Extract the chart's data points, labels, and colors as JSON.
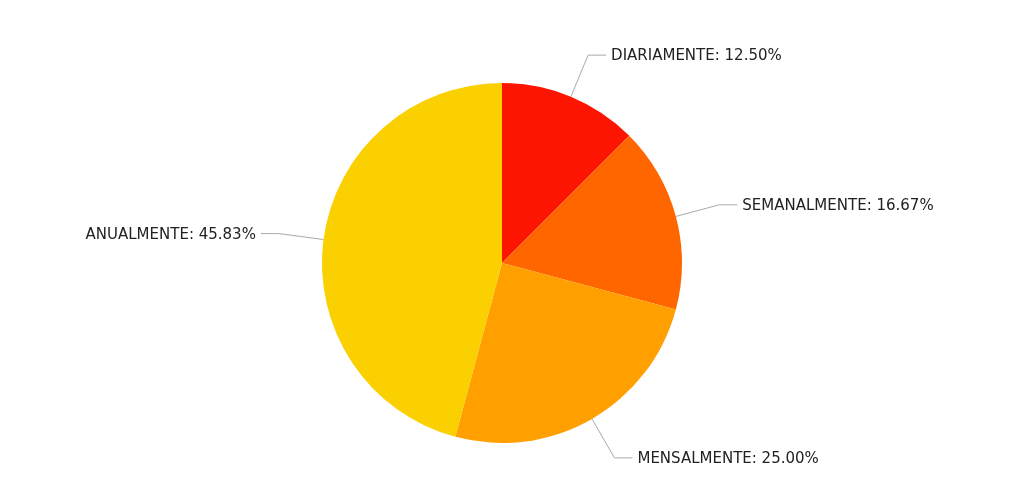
{
  "chart_data": {
    "type": "pie",
    "categories": [
      "DIARIAMENTE",
      "SEMANALMENTE",
      "MENSALMENTE",
      "ANUALMENTE"
    ],
    "values": [
      12.5,
      16.67,
      25,
      45.83
    ],
    "value_labels": [
      "12.50%",
      "16.67%",
      "25.00%",
      "45.83%"
    ],
    "colors": [
      "#fc1500",
      "#ff6600",
      "#ff9f00",
      "#fad000"
    ],
    "legend": false
  }
}
